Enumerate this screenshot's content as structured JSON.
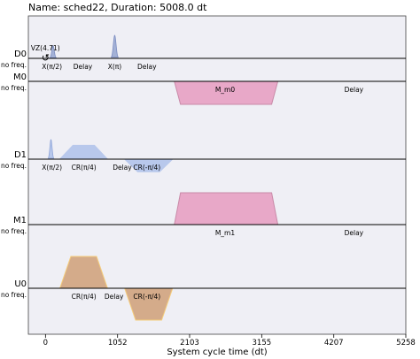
{
  "title": "Name: sched22, Duration: 5008.0 dt",
  "chart_data": {
    "type": "pulse-schedule",
    "xlabel": "System cycle time (dt)",
    "xlim": [
      -250,
      5258
    ],
    "x_ticks": [
      {
        "v": 0,
        "label": "0"
      },
      {
        "v": 1052,
        "label": "1052"
      },
      {
        "v": 2103,
        "label": "2103"
      },
      {
        "v": 3155,
        "label": "3155"
      },
      {
        "v": 4207,
        "label": "4207"
      },
      {
        "v": 5258,
        "label": "5258"
      }
    ],
    "channels": [
      {
        "name": "D0",
        "freq": "no freq.",
        "events": [
          {
            "kind": "gaussian",
            "t": 110,
            "width": 90,
            "amp": 0.55,
            "dir": "up",
            "fill": "#a3b1d6",
            "stroke": "#7b8cc0"
          },
          {
            "kind": "gaussian",
            "t": 1010,
            "width": 100,
            "amp": 1.0,
            "dir": "up",
            "fill": "#a3b1d6",
            "stroke": "#7b8cc0"
          }
        ],
        "labels": [
          {
            "t": 95,
            "text": "X(π/2)"
          },
          {
            "t": 545,
            "text": "Delay"
          },
          {
            "t": 1010,
            "text": "X(π)"
          },
          {
            "t": 1480,
            "text": "Delay"
          }
        ],
        "vz": {
          "t": 0,
          "text": "VZ(4.71)"
        }
      },
      {
        "name": "M0",
        "freq": "no freq.",
        "events": [
          {
            "kind": "trapezoid",
            "t0": 1880,
            "t1": 3390,
            "ramp": 90,
            "amp": 1.0,
            "dir": "down",
            "fill": "#e8a8c8",
            "stroke": "#c98aa8"
          }
        ],
        "labels": [
          {
            "t": 2620,
            "text": "M_m0"
          },
          {
            "t": 4500,
            "text": "Delay"
          }
        ]
      },
      {
        "name": "D1",
        "freq": "no freq.",
        "events": [
          {
            "kind": "gaussian",
            "t": 80,
            "width": 80,
            "amp": 0.85,
            "dir": "up",
            "fill": "#b8c8ec",
            "stroke": "#8ea4d8"
          },
          {
            "kind": "trapezoid",
            "t0": 210,
            "t1": 905,
            "ramp": 190,
            "amp": 0.6,
            "dir": "up",
            "fill": "#b8c8ec",
            "stroke": "#b8c8ec"
          },
          {
            "kind": "trapezoid",
            "t0": 1155,
            "t1": 1855,
            "ramp": 190,
            "amp": 0.55,
            "dir": "down",
            "fill": "#b8c8ec",
            "stroke": "#b8c8ec"
          }
        ],
        "labels": [
          {
            "t": 95,
            "text": "X(π/2)"
          },
          {
            "t": 560,
            "text": "CR(π/4)"
          },
          {
            "t": 1120,
            "text": "Delay"
          },
          {
            "t": 1480,
            "text": "CR(-π/4)"
          }
        ]
      },
      {
        "name": "M1",
        "freq": "no freq.",
        "events": [
          {
            "kind": "trapezoid",
            "t0": 1880,
            "t1": 3390,
            "ramp": 90,
            "amp": 1.0,
            "dir": "up",
            "fill": "#e8a8c8",
            "stroke": "#c98aa8"
          }
        ],
        "labels": [
          {
            "t": 2620,
            "text": "M_m1"
          },
          {
            "t": 4500,
            "text": "Delay"
          }
        ]
      },
      {
        "name": "U0",
        "freq": "no freq.",
        "events": [
          {
            "kind": "trapezoid",
            "t0": 210,
            "t1": 905,
            "ramp": 160,
            "amp": 1.0,
            "dir": "up",
            "fill": "#d4ab8a",
            "stroke": "#f5cc7a"
          },
          {
            "kind": "trapezoid",
            "t0": 1155,
            "t1": 1855,
            "ramp": 160,
            "amp": 1.0,
            "dir": "down",
            "fill": "#d4ab8a",
            "stroke": "#f5cc7a"
          }
        ],
        "labels": [
          {
            "t": 560,
            "text": "CR(π/4)"
          },
          {
            "t": 1000,
            "text": "Delay"
          },
          {
            "t": 1480,
            "text": "CR(-π/4)"
          }
        ]
      }
    ],
    "colors": {
      "background": "#efeff5",
      "baseline": "#000000"
    }
  }
}
